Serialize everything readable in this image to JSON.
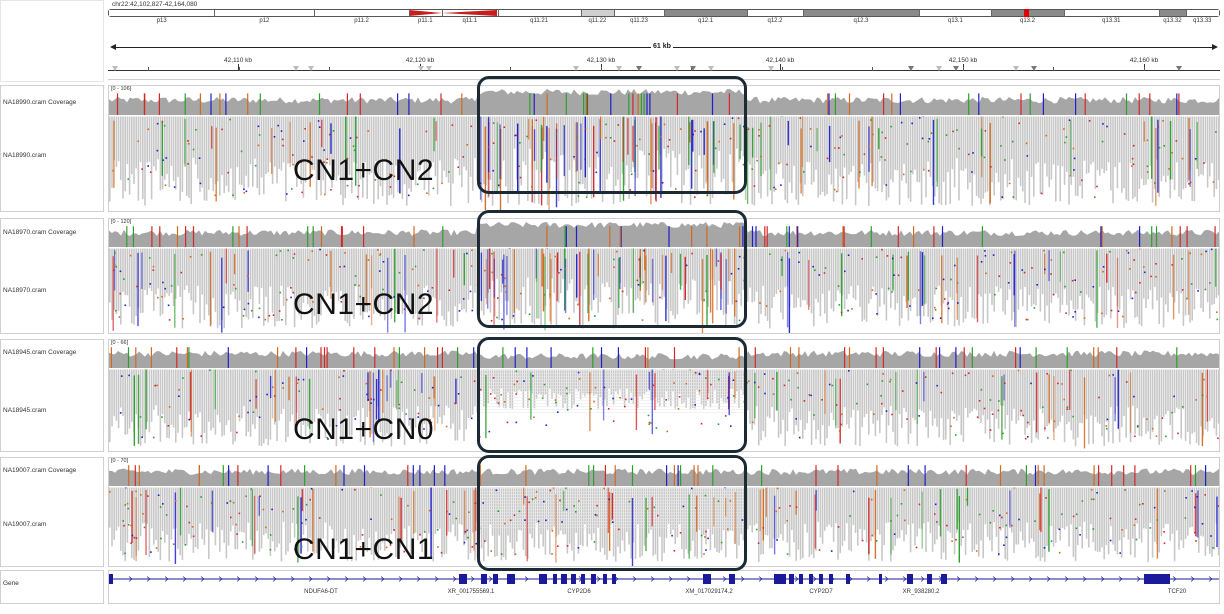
{
  "locus": "chr22:42,102,827-42,164,080",
  "span_label": "61 kb",
  "cytobands": [
    {
      "name": "p13",
      "start": 0.0,
      "end": 0.095,
      "fill": "#ffffff"
    },
    {
      "name": "p12",
      "start": 0.095,
      "end": 0.185,
      "fill": "#ffffff"
    },
    {
      "name": "p11.2",
      "start": 0.185,
      "end": 0.27,
      "fill": "#ffffff"
    },
    {
      "name": "p11.1",
      "start": 0.27,
      "end": 0.3,
      "fill": "#c81e1e",
      "shape": "left-tri"
    },
    {
      "name": "q11.1",
      "start": 0.3,
      "end": 0.35,
      "fill": "#c81e1e",
      "shape": "right-tri"
    },
    {
      "name": "q11.21",
      "start": 0.35,
      "end": 0.425,
      "fill": "#ffffff"
    },
    {
      "name": "q11.22",
      "start": 0.425,
      "end": 0.455,
      "fill": "#cfcfcf"
    },
    {
      "name": "q11.23",
      "start": 0.455,
      "end": 0.5,
      "fill": "#ffffff"
    },
    {
      "name": "q12.1",
      "start": 0.5,
      "end": 0.575,
      "fill": "#8a8a8a"
    },
    {
      "name": "q12.2",
      "start": 0.575,
      "end": 0.625,
      "fill": "#ffffff"
    },
    {
      "name": "q12.3",
      "start": 0.625,
      "end": 0.73,
      "fill": "#8a8a8a"
    },
    {
      "name": "q13.1",
      "start": 0.73,
      "end": 0.795,
      "fill": "#ffffff"
    },
    {
      "name": "q13.2",
      "start": 0.795,
      "end": 0.86,
      "fill": "#8a8a8a",
      "marker": "#e00000"
    },
    {
      "name": "q13.31",
      "start": 0.86,
      "end": 0.946,
      "fill": "#ffffff"
    },
    {
      "name": "q13.32",
      "start": 0.946,
      "end": 0.97,
      "fill": "#8a8a8a"
    },
    {
      "name": "q13.33",
      "start": 0.97,
      "end": 1.0,
      "fill": "#ffffff"
    }
  ],
  "ruler_ticks": [
    "42,110 kb",
    "42,120 kb",
    "42,130 kb",
    "42,140 kb",
    "42,150 kb",
    "42,160 kb"
  ],
  "samples": [
    {
      "coverage_name": "NA18990.cram Coverage",
      "reads_name": "NA18990.cram",
      "range": "[0 - 106]",
      "cn_label": "CN1+CN2"
    },
    {
      "coverage_name": "NA18970.cram Coverage",
      "reads_name": "NA18970.cram",
      "range": "[0 - 120]",
      "cn_label": "CN1+CN2"
    },
    {
      "coverage_name": "NA18945.cram Coverage",
      "reads_name": "NA18945.cram",
      "range": "[0 - 66]",
      "cn_label": "CN1+CN0"
    },
    {
      "coverage_name": "NA19007.cram Coverage",
      "reads_name": "NA19007.cram",
      "range": "[0 - 70]",
      "cn_label": "CN1+CN1"
    }
  ],
  "gene_track": {
    "name": "Gene",
    "genes": [
      "NDUFA6-DT",
      "XR_001755569.1",
      "CYP2D6",
      "XM_017029174.2",
      "CYP2D7",
      "XR_938280.2",
      "TCF20"
    ]
  },
  "colors": {
    "coverage": "#a6a6a6",
    "read": "#c8c8c8",
    "gene": "#1a1a9a",
    "box": "#1c2a35",
    "mismatch_A": "#2ca02c",
    "mismatch_C": "#1f1fd0",
    "mismatch_G": "#d2691e",
    "mismatch_T": "#d62728"
  }
}
